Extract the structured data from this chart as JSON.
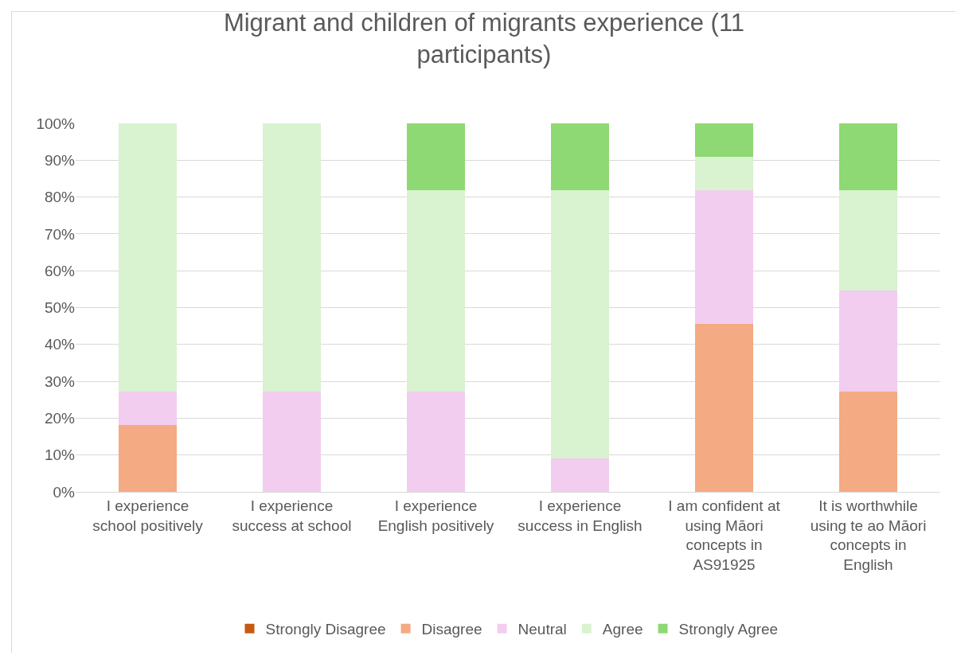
{
  "chart_data": {
    "type": "bar",
    "stacked": true,
    "title": "Migrant and children of migrants experience (11 participants)",
    "categories": [
      "I experience school positively",
      "I experience success at school",
      "I experience English positively",
      "I experience success in English",
      "I am confident at using Māori concepts in AS91925",
      "It is worthwhile using te ao Māori concepts in English"
    ],
    "series": [
      {
        "name": "Strongly Disagree",
        "color": "#c55a11",
        "values": [
          0,
          0,
          0,
          0,
          0,
          0
        ]
      },
      {
        "name": "Disagree",
        "color": "#f4aa82",
        "values": [
          18.2,
          0,
          0,
          0,
          45.5,
          27.3
        ]
      },
      {
        "name": "Neutral",
        "color": "#f2cdef",
        "values": [
          9.1,
          27.3,
          27.3,
          9.1,
          36.4,
          27.3
        ]
      },
      {
        "name": "Agree",
        "color": "#d9f2d0",
        "values": [
          72.7,
          72.7,
          54.5,
          72.7,
          9.1,
          27.3
        ]
      },
      {
        "name": "Strongly Agree",
        "color": "#8ed973",
        "values": [
          0,
          0,
          18.2,
          18.2,
          9.1,
          18.2
        ]
      }
    ],
    "ylim": [
      0,
      100
    ],
    "yticks": [
      {
        "value": 0,
        "label": "0%"
      },
      {
        "value": 10,
        "label": "10%"
      },
      {
        "value": 20,
        "label": "20%"
      },
      {
        "value": 30,
        "label": "30%"
      },
      {
        "value": 40,
        "label": "40%"
      },
      {
        "value": 50,
        "label": "50%"
      },
      {
        "value": 60,
        "label": "60%"
      },
      {
        "value": 70,
        "label": "70%"
      },
      {
        "value": 80,
        "label": "80%"
      },
      {
        "value": 90,
        "label": "90%"
      },
      {
        "value": 100,
        "label": "100%"
      }
    ],
    "grid": "y",
    "legend": "bottom"
  }
}
